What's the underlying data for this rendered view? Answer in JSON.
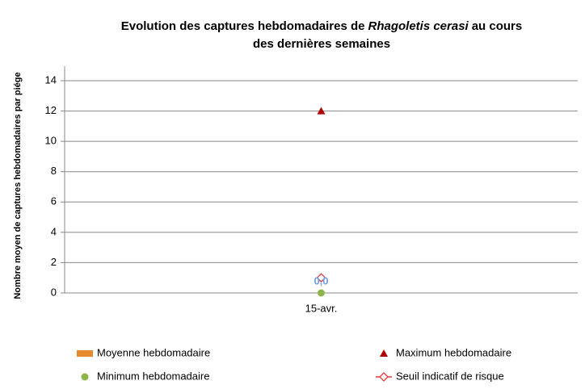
{
  "chart_data": {
    "type": "bar",
    "title_lines": [
      [
        {
          "text": "Evolution des captures hebdomadaires de"
        },
        {
          "text": "Rhagoletis cerasi",
          "italic": true
        },
        {
          "text": "au cours"
        }
      ],
      [
        {
          "text": "des dernières semaines"
        }
      ]
    ],
    "y_label": "Nombre moyen de captures hebdomadaires par piége",
    "categories": [
      "15-avr."
    ],
    "ylim": [
      0,
      14
    ],
    "yticks": [
      0,
      2,
      4,
      6,
      8,
      10,
      12,
      14
    ],
    "grid": true,
    "series": [
      {
        "name": "Moyenne hebdomadaire",
        "marker": "bar",
        "color": "#e58a2e",
        "values": [
          0
        ],
        "value_labels": [
          "0,0"
        ],
        "label_color": "#6e9ee6"
      },
      {
        "name": "Maximum hebdomadaire",
        "marker": "triangle",
        "color": "#b00000",
        "values": [
          12
        ]
      },
      {
        "name": "Minimum hebdomadaire",
        "marker": "circle",
        "color": "#8db54a",
        "values": [
          0
        ]
      },
      {
        "name": "Seuil indicatif de risque",
        "marker": "diamond-line",
        "color": "#e23c3c",
        "values": [
          1
        ]
      }
    ]
  }
}
